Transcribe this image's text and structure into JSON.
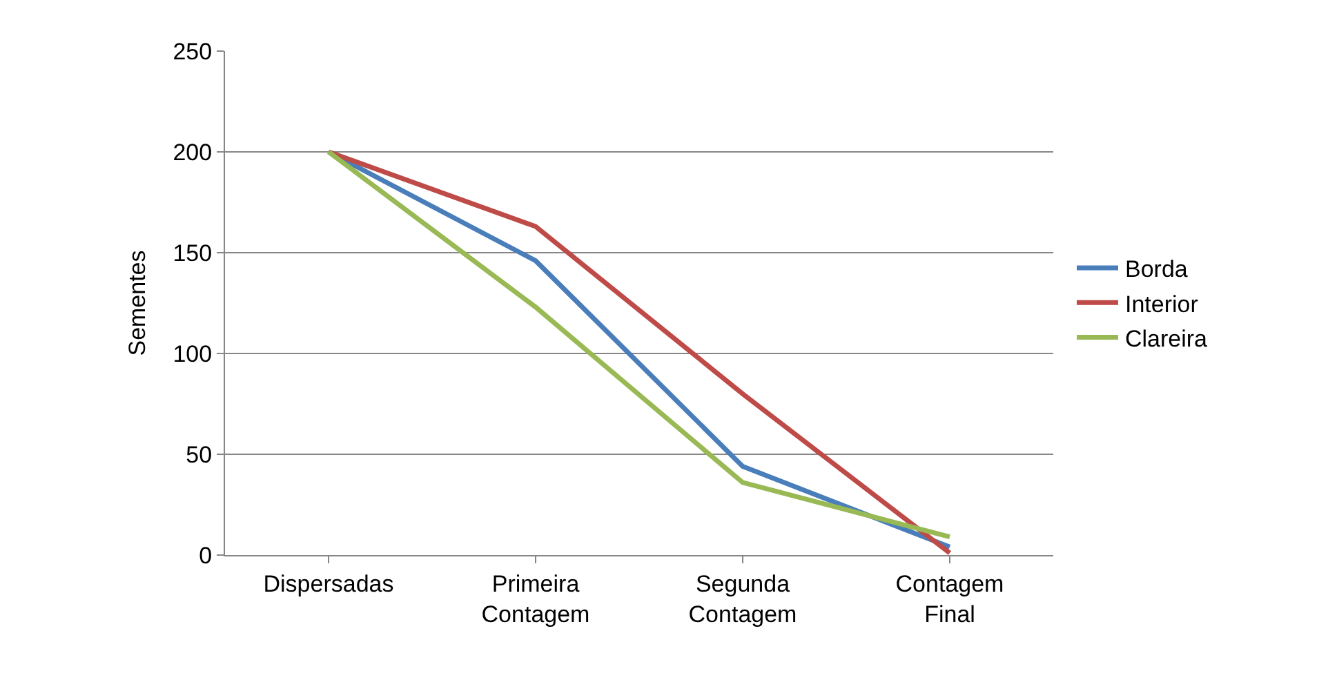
{
  "chart_data": {
    "type": "line",
    "ylabel": "Sementes",
    "categories": [
      "Dispersadas",
      "Primeira Contagem",
      "Segunda Contagem",
      "Contagem Final"
    ],
    "series": [
      {
        "name": "Borda",
        "color": "#4a7ebb",
        "values": [
          200,
          146,
          44,
          4
        ]
      },
      {
        "name": "Interior",
        "color": "#be4b48",
        "values": [
          200,
          163,
          80,
          1
        ]
      },
      {
        "name": "Clareira",
        "color": "#98b954",
        "values": [
          200,
          123,
          36,
          9
        ]
      }
    ],
    "ylim": [
      0,
      250
    ],
    "yticks": [
      0,
      50,
      100,
      150,
      200,
      250
    ],
    "grid": "y",
    "legend": "right",
    "marker": "none",
    "line_style": "solid"
  }
}
